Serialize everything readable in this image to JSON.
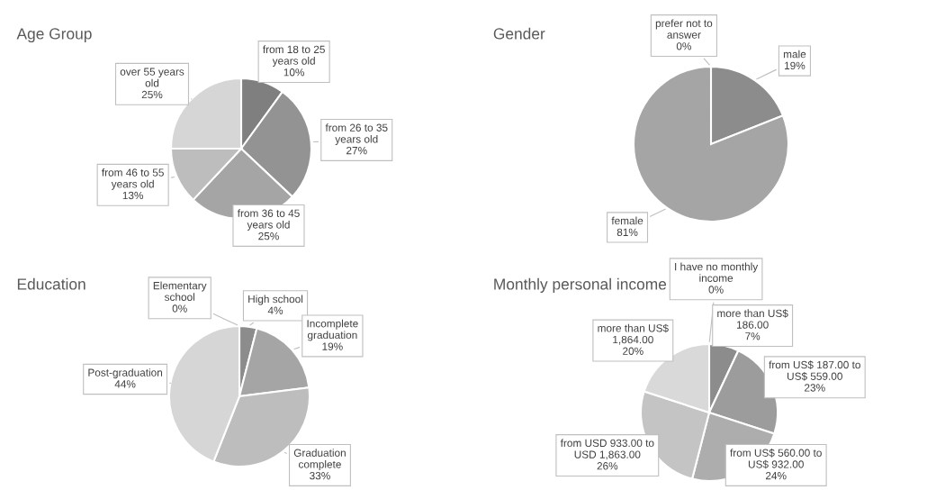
{
  "chart_data": [
    {
      "type": "pie",
      "title": "Age Group",
      "categories": [
        "from 18 to 25 years old",
        "from 26 to 35 years old",
        "from 36 to 45 years old",
        "from 46 to 55 years old",
        "over 55 years old"
      ],
      "values": [
        10,
        27,
        25,
        13,
        25
      ],
      "value_labels": [
        "10%",
        "27%",
        "25%",
        "13%",
        "25%"
      ],
      "colors": [
        "#7f7f7f",
        "#939393",
        "#a5a5a5",
        "#bdbdbd",
        "#d6d6d6"
      ],
      "data_labels": true
    },
    {
      "type": "pie",
      "title": "Gender",
      "categories": [
        "prefer not to answer",
        "male",
        "female"
      ],
      "values": [
        0,
        19,
        81
      ],
      "value_labels": [
        "0%",
        "19%",
        "81%"
      ],
      "colors": [
        "#7f7f7f",
        "#8c8c8c",
        "#a5a5a5"
      ],
      "data_labels": true
    },
    {
      "type": "pie",
      "title": "Education",
      "categories": [
        "Elementary school",
        "High school",
        "Incomplete graduation",
        "Graduation complete",
        "Post-graduation"
      ],
      "values": [
        0,
        4,
        19,
        33,
        44
      ],
      "value_labels": [
        "0%",
        "4%",
        "19%",
        "33%",
        "44%"
      ],
      "colors": [
        "#7f7f7f",
        "#8c8c8c",
        "#a5a5a5",
        "#bdbdbd",
        "#d6d6d6"
      ],
      "data_labels": true
    },
    {
      "type": "pie",
      "title": "Monthly personal income",
      "categories": [
        "I have no monthly income",
        "more than US$ 186.00",
        "from US$ 187.00 to US$ 559.00",
        "from US$ 560.00 to US$ 932.00",
        "from USD 933.00 to USD 1,863.00",
        "more than US$ 1,864.00"
      ],
      "values": [
        0,
        7,
        23,
        24,
        26,
        20
      ],
      "value_labels": [
        "0%",
        "7%",
        "23%",
        "24%",
        "26%",
        "20%"
      ],
      "colors": [
        "#7f7f7f",
        "#8c8c8c",
        "#9c9c9c",
        "#adadad",
        "#c4c4c4",
        "#d9d9d9"
      ],
      "data_labels": true
    }
  ]
}
